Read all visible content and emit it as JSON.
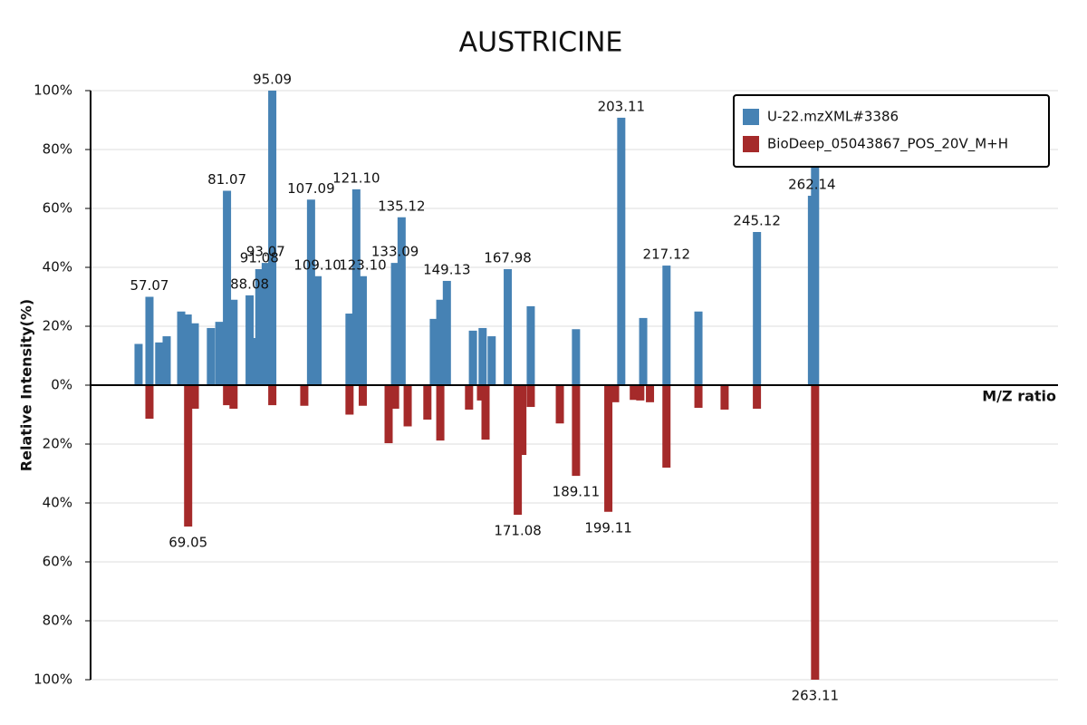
{
  "chart_data": {
    "type": "mirror-bar",
    "title": "AUSTRICINE",
    "x_axis_label": "M/Z ratio",
    "y_axis_label": "Relative Intensity(%)",
    "xlim": [
      38.85,
      338.3
    ],
    "ylim": [
      -100,
      100
    ],
    "yticks": [
      {
        "value": -100,
        "label": "100%"
      },
      {
        "value": -80,
        "label": "80%"
      },
      {
        "value": -60,
        "label": "60%"
      },
      {
        "value": -40,
        "label": "40%"
      },
      {
        "value": -20,
        "label": "20%"
      },
      {
        "value": 0,
        "label": "0%"
      },
      {
        "value": 20,
        "label": "20%"
      },
      {
        "value": 40,
        "label": "40%"
      },
      {
        "value": 60,
        "label": "60%"
      },
      {
        "value": 80,
        "label": "80%"
      },
      {
        "value": 100,
        "label": "100%"
      }
    ],
    "grid": true,
    "legend": "top-right",
    "series": [
      {
        "name": "U-22.mzXML#3386",
        "color": "#4682b4",
        "x": [
          53.7,
          57.07,
          60.1,
          62.4,
          66.9,
          68.9,
          71.1,
          76.1,
          78.7,
          81.07,
          83.1,
          88.08,
          90.2,
          91.08,
          93.07,
          95.09,
          107.09,
          109.1,
          119.0,
          121.1,
          123.1,
          133.09,
          135.12,
          145.1,
          147.1,
          149.13,
          157.2,
          160.2,
          163.0,
          167.98,
          175.1,
          189.1,
          203.11,
          209.9,
          217.12,
          227,
          245.12,
          262.14,
          263.1
        ],
        "values": [
          14,
          30,
          14.5,
          16.6,
          25,
          24,
          21,
          19.4,
          21.5,
          66,
          29,
          30.5,
          16,
          39.4,
          41.5,
          100,
          63,
          37,
          24.3,
          66.5,
          37,
          41.5,
          57,
          22.5,
          29,
          35.4,
          18.5,
          19.4,
          16.6,
          39.4,
          26.8,
          19,
          90.8,
          22.8,
          40.6,
          25,
          52,
          64.3,
          74.5
        ],
        "x_labels": [
          null,
          "57.07",
          null,
          null,
          null,
          null,
          null,
          null,
          null,
          "81.07",
          null,
          "88.08",
          null,
          "91.08",
          "93.07",
          "95.09",
          "107.09",
          "109.10",
          null,
          "121.10",
          "123.10",
          "133.09",
          "135.12",
          null,
          null,
          "149.13",
          null,
          null,
          null,
          "167.98",
          null,
          null,
          "203.11",
          null,
          "217.12",
          null,
          "245.12",
          "262.14",
          null
        ]
      },
      {
        "name": "BioDeep_05043867_POS_20V_M+H",
        "color": "#a52a2a",
        "x": [
          57.07,
          69.05,
          71.1,
          81.1,
          83.1,
          95.1,
          105,
          119,
          123.1,
          131.1,
          133.1,
          137,
          143.1,
          147.1,
          156,
          159.7,
          161.1,
          171.08,
          172.5,
          175.1,
          184.1,
          189.11,
          199.11,
          201.2,
          207,
          209,
          212,
          217.1,
          227,
          235.1,
          245.1,
          263.11
        ],
        "values": [
          -11.4,
          -48,
          -8,
          -6.8,
          -8,
          -6.8,
          -7,
          -10,
          -7,
          -19.7,
          -8,
          -14,
          -11.7,
          -18.8,
          -8.3,
          -5.2,
          -18.5,
          -44,
          -23.7,
          -7.4,
          -13,
          -30.8,
          -43,
          -5.8,
          -5,
          -5.2,
          -5.8,
          -28,
          -7.7,
          -8.3,
          -8,
          -100
        ],
        "x_labels": [
          null,
          "69.05",
          null,
          null,
          null,
          null,
          null,
          null,
          null,
          null,
          null,
          null,
          null,
          null,
          null,
          null,
          null,
          "171.08",
          null,
          null,
          null,
          "189.11",
          "199.11",
          null,
          null,
          null,
          null,
          null,
          null,
          null,
          null,
          "263.11"
        ]
      }
    ]
  }
}
